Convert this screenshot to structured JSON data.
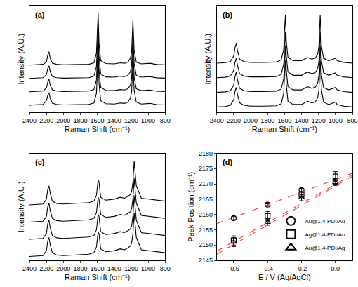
{
  "chart_data": [
    {
      "type": "line",
      "title": "(a)",
      "xlabel": "Raman Shift (cm⁻¹)",
      "ylabel": "Intensity (A.U.)",
      "color": "#000000",
      "tick_labels": "x",
      "xlim": [
        2400,
        800
      ],
      "xticks": [
        2400,
        2200,
        2000,
        1800,
        1600,
        1400,
        1200,
        1000,
        800
      ],
      "ylim": [
        0,
        7.2
      ],
      "x": [
        2400,
        2300,
        2240,
        2200,
        2185,
        2170,
        2155,
        2130,
        2080,
        2000,
        1850,
        1700,
        1640,
        1610,
        1600,
        1590,
        1580,
        1560,
        1500,
        1400,
        1330,
        1280,
        1240,
        1210,
        1195,
        1180,
        1165,
        1140,
        1080,
        1000,
        980,
        900,
        800
      ],
      "series": [
        {
          "values": [
            3.2,
            3.22,
            3.25,
            3.4,
            3.85,
            4.1,
            3.65,
            3.33,
            3.25,
            3.22,
            3.23,
            3.25,
            3.35,
            4.0,
            5.4,
            6.7,
            4.7,
            3.5,
            3.3,
            3.28,
            3.35,
            3.32,
            3.4,
            3.65,
            4.1,
            6.2,
            4.2,
            3.4,
            3.28,
            3.3,
            3.32,
            3.24,
            3.22
          ]
        },
        {
          "values": [
            2.3,
            2.32,
            2.35,
            2.55,
            2.95,
            3.15,
            2.75,
            2.43,
            2.35,
            2.32,
            2.33,
            2.35,
            2.45,
            3.1,
            4.5,
            5.75,
            3.8,
            2.6,
            2.4,
            2.38,
            2.45,
            2.42,
            2.5,
            2.75,
            3.2,
            5.2,
            3.3,
            2.5,
            2.38,
            2.4,
            2.42,
            2.34,
            2.32
          ]
        },
        {
          "values": [
            1.4,
            1.42,
            1.45,
            1.65,
            2.05,
            2.25,
            1.85,
            1.53,
            1.45,
            1.42,
            1.43,
            1.45,
            1.55,
            2.2,
            3.6,
            4.85,
            2.9,
            1.7,
            1.5,
            1.48,
            1.55,
            1.52,
            1.6,
            1.85,
            2.3,
            4.3,
            2.4,
            1.6,
            1.48,
            1.5,
            1.52,
            1.44,
            1.42
          ]
        },
        {
          "values": [
            0.5,
            0.52,
            0.55,
            0.8,
            1.15,
            1.35,
            0.95,
            0.63,
            0.55,
            0.52,
            0.53,
            0.55,
            0.65,
            1.3,
            2.7,
            3.9,
            2.0,
            0.8,
            0.6,
            0.58,
            0.65,
            0.62,
            0.7,
            0.95,
            1.4,
            3.4,
            1.5,
            0.7,
            0.58,
            0.6,
            0.62,
            0.54,
            0.52
          ]
        }
      ]
    },
    {
      "type": "line",
      "title": "(b)",
      "xlabel": "Raman Shift (cm⁻¹)",
      "ylabel": "Intensity (A.U.)",
      "color": "#000000",
      "tick_labels": "x",
      "xlim": [
        2400,
        800
      ],
      "xticks": [
        2400,
        2200,
        2000,
        1800,
        1600,
        1400,
        1200,
        1000,
        800
      ],
      "ylim": [
        0,
        6.6
      ],
      "x": [
        2400,
        2300,
        2240,
        2200,
        2185,
        2170,
        2155,
        2130,
        2080,
        2000,
        1850,
        1700,
        1640,
        1610,
        1600,
        1590,
        1580,
        1560,
        1500,
        1400,
        1330,
        1280,
        1240,
        1210,
        1195,
        1180,
        1165,
        1140,
        1080,
        1000,
        980,
        900,
        800
      ],
      "series": [
        {
          "values": [
            3.05,
            3.08,
            3.15,
            3.5,
            4.0,
            4.3,
            3.8,
            3.3,
            3.15,
            3.1,
            3.1,
            3.12,
            3.25,
            3.9,
            5.2,
            6.0,
            4.4,
            3.4,
            3.2,
            3.2,
            3.4,
            3.3,
            3.35,
            3.6,
            4.1,
            6.0,
            4.1,
            3.35,
            3.2,
            3.35,
            3.2,
            3.1,
            3.05
          ]
        },
        {
          "values": [
            2.15,
            2.18,
            2.25,
            2.6,
            3.1,
            3.35,
            2.9,
            2.4,
            2.25,
            2.2,
            2.2,
            2.22,
            2.35,
            3.0,
            4.2,
            5.0,
            3.5,
            2.5,
            2.3,
            2.3,
            2.5,
            2.4,
            2.45,
            2.7,
            3.2,
            5.0,
            3.2,
            2.45,
            2.3,
            2.45,
            2.3,
            2.2,
            2.15
          ]
        },
        {
          "values": [
            1.25,
            1.28,
            1.35,
            1.7,
            2.2,
            2.5,
            2.0,
            1.5,
            1.35,
            1.3,
            1.3,
            1.32,
            1.45,
            2.1,
            3.3,
            4.1,
            2.6,
            1.6,
            1.4,
            1.4,
            1.6,
            1.5,
            1.55,
            1.8,
            2.3,
            4.1,
            2.3,
            1.55,
            1.4,
            1.55,
            1.4,
            1.3,
            1.25
          ]
        },
        {
          "values": [
            0.35,
            0.38,
            0.45,
            0.8,
            1.3,
            1.55,
            1.1,
            0.6,
            0.45,
            0.4,
            0.4,
            0.42,
            0.55,
            1.2,
            2.4,
            3.2,
            1.7,
            0.7,
            0.5,
            0.5,
            0.7,
            0.6,
            0.65,
            0.9,
            1.4,
            3.2,
            1.4,
            0.65,
            0.5,
            0.65,
            0.5,
            0.4,
            0.35
          ]
        }
      ]
    },
    {
      "type": "line",
      "title": "(c)",
      "xlabel": "Raman Shift (cm⁻¹)",
      "ylabel": "Intensity (A.U.)",
      "color": "#000000",
      "tick_labels": "x",
      "xlim": [
        2400,
        800
      ],
      "xticks": [
        2400,
        2200,
        2000,
        1800,
        1600,
        1400,
        1200,
        1000,
        800
      ],
      "ylim": [
        0,
        5.6
      ],
      "x": [
        2400,
        2300,
        2240,
        2200,
        2185,
        2170,
        2155,
        2130,
        2080,
        2000,
        1850,
        1700,
        1640,
        1610,
        1600,
        1590,
        1580,
        1560,
        1500,
        1400,
        1330,
        1280,
        1240,
        1210,
        1195,
        1180,
        1165,
        1140,
        1080,
        1000,
        980,
        900,
        800
      ],
      "series": [
        {
          "values": [
            2.9,
            2.92,
            2.95,
            3.2,
            3.7,
            3.9,
            3.5,
            3.1,
            2.98,
            2.95,
            2.98,
            3.02,
            3.1,
            3.4,
            3.8,
            4.2,
            4.1,
            3.3,
            3.15,
            3.2,
            3.3,
            3.25,
            3.35,
            3.45,
            3.6,
            4.1,
            5.2,
            3.9,
            3.25,
            3.2,
            3.2,
            3.15,
            3.1
          ]
        },
        {
          "values": [
            2.0,
            2.02,
            2.05,
            2.3,
            2.8,
            3.0,
            2.6,
            2.2,
            2.08,
            2.05,
            2.08,
            2.12,
            2.2,
            2.5,
            2.9,
            3.3,
            3.2,
            2.4,
            2.25,
            2.3,
            2.4,
            2.35,
            2.45,
            2.55,
            2.7,
            3.2,
            4.3,
            3.0,
            2.35,
            2.3,
            2.3,
            2.25,
            2.2
          ]
        },
        {
          "values": [
            1.1,
            1.12,
            1.15,
            1.4,
            1.9,
            2.1,
            1.7,
            1.3,
            1.18,
            1.15,
            1.18,
            1.22,
            1.3,
            1.6,
            2.0,
            2.4,
            2.3,
            1.5,
            1.35,
            1.4,
            1.5,
            1.45,
            1.55,
            1.65,
            1.8,
            2.3,
            3.4,
            2.1,
            1.45,
            1.4,
            1.4,
            1.35,
            1.3
          ]
        },
        {
          "values": [
            0.2,
            0.22,
            0.25,
            0.5,
            1.0,
            1.2,
            0.8,
            0.4,
            0.28,
            0.25,
            0.28,
            0.32,
            0.4,
            0.7,
            1.1,
            1.5,
            1.4,
            0.6,
            0.45,
            0.5,
            0.6,
            0.55,
            0.65,
            0.75,
            0.9,
            1.4,
            2.5,
            1.2,
            0.55,
            0.5,
            0.5,
            0.45,
            0.4
          ]
        }
      ]
    },
    {
      "type": "scatter",
      "title": "(d)",
      "xlabel": "E / V (Ag/AgCl)",
      "ylabel": "Peak Position (cm⁻¹)",
      "legend": "bottom right",
      "xlim": [
        -0.7,
        0.1
      ],
      "xticks": [
        -0.6,
        -0.4,
        -0.2,
        {
          "value": 0,
          "label": "0.0"
        }
      ],
      "ylim": [
        2145,
        2180
      ],
      "yticks": [
        2145,
        2150,
        2155,
        2160,
        2165,
        2170,
        2175,
        2180
      ],
      "x": [
        -0.6,
        -0.4,
        -0.2,
        0
      ],
      "series": [
        {
          "name": "Au@1,4-PDI/Au",
          "color": "#000000",
          "marker": "circle-open",
          "values": [
            2158.8,
            2163.2,
            2168.0,
            2172.5
          ],
          "errors": [
            0.5,
            0.3,
            0.5,
            1.5
          ]
        },
        {
          "name": "Ag@1,4-PDI/Au",
          "color": "#000000",
          "marker": "square-open",
          "values": [
            2151.5,
            2159.5,
            2166.5,
            2170.8
          ],
          "errors": [
            1.5,
            1.5,
            1.0,
            1.0
          ]
        },
        {
          "name": "Au@1,4-PDI/Ag",
          "color": "#000000",
          "marker": "triangle-up-open",
          "values": [
            2151.0,
            2157.5,
            2165.5,
            2170.5
          ],
          "errors": [
            1.5,
            1.0,
            1.0,
            1.0
          ]
        },
        {
          "type": "line",
          "line_style": "dashed",
          "color": "#e0393e",
          "x": [
            -0.7,
            0.1
          ],
          "values": [
            2157.0,
            2173.5
          ]
        },
        {
          "type": "line",
          "line_style": "dashed",
          "color": "#e0393e",
          "x": [
            -0.7,
            0.1
          ],
          "values": [
            2148.0,
            2173.0
          ]
        },
        {
          "type": "line",
          "line_style": "dashed",
          "color": "#e0393e",
          "x": [
            -0.7,
            0.1
          ],
          "values": [
            2147.0,
            2172.5
          ]
        }
      ]
    }
  ]
}
